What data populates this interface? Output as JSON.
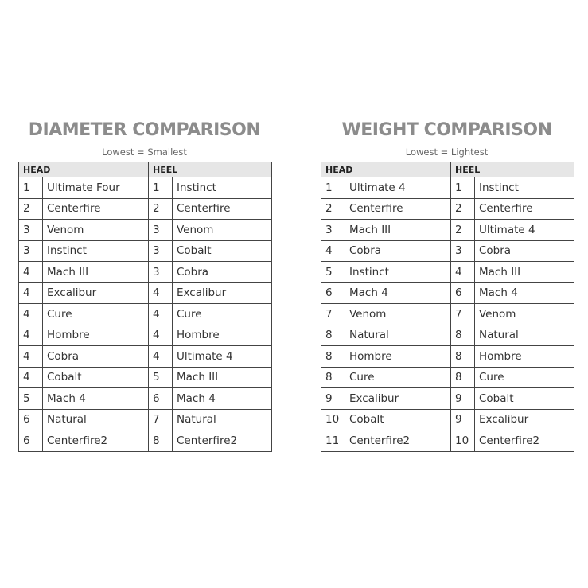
{
  "tables": [
    {
      "title": "DIAMETER COMPARISON",
      "subtitle": "Lowest = Smallest",
      "headers": [
        "HEAD",
        "HEEL"
      ],
      "rows": [
        [
          "1",
          "Ultimate Four",
          "1",
          "Instinct"
        ],
        [
          "2",
          "Centerfire",
          "2",
          "Centerfire"
        ],
        [
          "3",
          "Venom",
          "3",
          "Venom"
        ],
        [
          "3",
          "Instinct",
          "3",
          "Cobalt"
        ],
        [
          "4",
          "Mach III",
          "3",
          "Cobra"
        ],
        [
          "4",
          "Excalibur",
          "4",
          "Excalibur"
        ],
        [
          "4",
          "Cure",
          "4",
          "Cure"
        ],
        [
          "4",
          "Hombre",
          "4",
          "Hombre"
        ],
        [
          "4",
          "Cobra",
          "4",
          "Ultimate 4"
        ],
        [
          "4",
          "Cobalt",
          "5",
          "Mach III"
        ],
        [
          "5",
          "Mach 4",
          "6",
          "Mach 4"
        ],
        [
          "6",
          "Natural",
          "7",
          "Natural"
        ],
        [
          "6",
          "Centerfire2",
          "8",
          "Centerfire2"
        ]
      ]
    },
    {
      "title": "WEIGHT COMPARISON",
      "subtitle": "Lowest = Lightest",
      "headers": [
        "HEAD",
        "HEEL"
      ],
      "rows": [
        [
          "1",
          "Ultimate 4",
          "1",
          "Instinct"
        ],
        [
          "2",
          "Centerfire",
          "2",
          "Centerfire"
        ],
        [
          "3",
          "Mach III",
          "2",
          "Ultimate 4"
        ],
        [
          "4",
          "Cobra",
          "3",
          "Cobra"
        ],
        [
          "5",
          "Instinct",
          "4",
          "Mach III"
        ],
        [
          "6",
          "Mach 4",
          "6",
          "Mach 4"
        ],
        [
          "7",
          "Venom",
          "7",
          "Venom"
        ],
        [
          "8",
          "Natural",
          "8",
          "Natural"
        ],
        [
          "8",
          "Hombre",
          "8",
          "Hombre"
        ],
        [
          "8",
          "Cure",
          "8",
          "Cure"
        ],
        [
          "9",
          "Excalibur",
          "9",
          "Cobalt"
        ],
        [
          "10",
          "Cobalt",
          "9",
          "Excalibur"
        ],
        [
          "11",
          "Centerfire2",
          "10",
          "Centerfire2"
        ]
      ]
    }
  ]
}
